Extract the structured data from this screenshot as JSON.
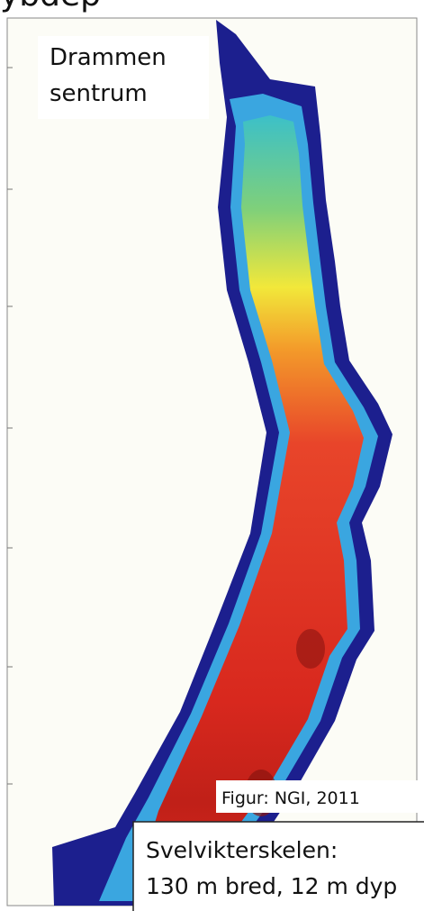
{
  "header": {
    "title_fragment": "ybdep"
  },
  "labels": {
    "place_line_1": "Drammen",
    "place_line_2": "sentrum",
    "credit": "Figur: NGI, 2011"
  },
  "callout": {
    "title": "Svelvikterskelen:",
    "text": "130 m bred, 12 m dyp"
  }
}
